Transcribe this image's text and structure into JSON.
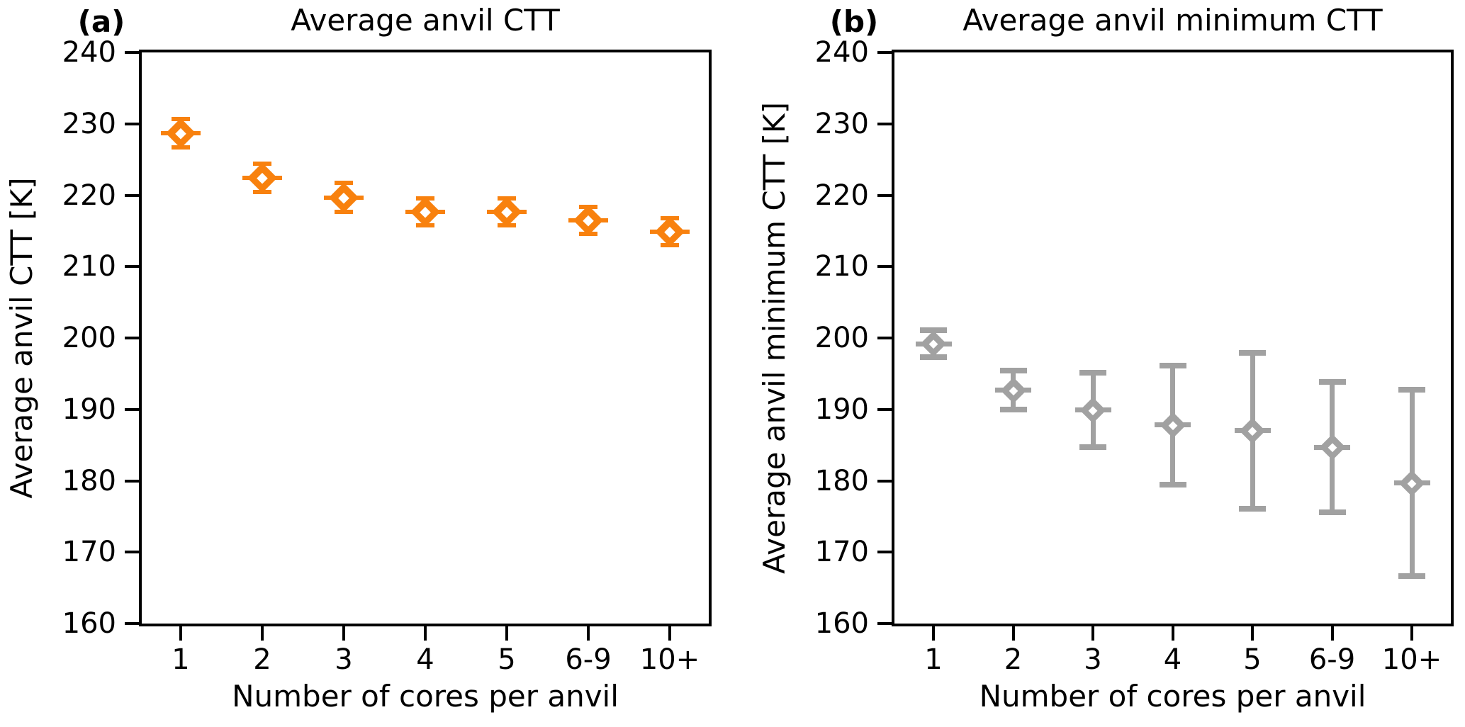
{
  "figure": {
    "background_color": "#ffffff",
    "axis_color": "#000000",
    "text_color": "#000000"
  },
  "chart_data": [
    {
      "id": "a",
      "type": "scatter",
      "panel_label": "(a)",
      "title": "Average anvil CTT",
      "ylabel": "Average anvil CTT [K]",
      "xlabel": "Number of cores per anvil",
      "categories": [
        "1",
        "2",
        "3",
        "4",
        "5",
        "6-9",
        "10+"
      ],
      "values": [
        228.7,
        222.4,
        219.7,
        217.7,
        217.7,
        216.5,
        214.9
      ],
      "errors": [
        2.0,
        2.0,
        2.0,
        1.9,
        1.9,
        1.9,
        1.9
      ],
      "marker": "diamond",
      "marker_color": "#f8810e",
      "ylim": [
        160,
        240
      ],
      "yticks": [
        160,
        170,
        180,
        190,
        200,
        210,
        220,
        230,
        240
      ],
      "grid": false,
      "legend": null
    },
    {
      "id": "b",
      "type": "scatter",
      "panel_label": "(b)",
      "title": "Average anvil minimum CTT",
      "ylabel": "Average anvil minimum CTT [K]",
      "xlabel": "Number of cores per anvil",
      "categories": [
        "1",
        "2",
        "3",
        "4",
        "5",
        "6-9",
        "10+"
      ],
      "values": [
        199.2,
        192.7,
        189.9,
        187.8,
        187.0,
        184.7,
        179.7
      ],
      "errors": [
        1.9,
        2.7,
        5.2,
        8.3,
        10.9,
        9.1,
        13.1
      ],
      "marker": "diamond",
      "marker_color": "#a1a1a1",
      "ylim": [
        160,
        240
      ],
      "yticks": [
        160,
        170,
        180,
        190,
        200,
        210,
        220,
        230,
        240
      ],
      "grid": false,
      "legend": null
    }
  ]
}
